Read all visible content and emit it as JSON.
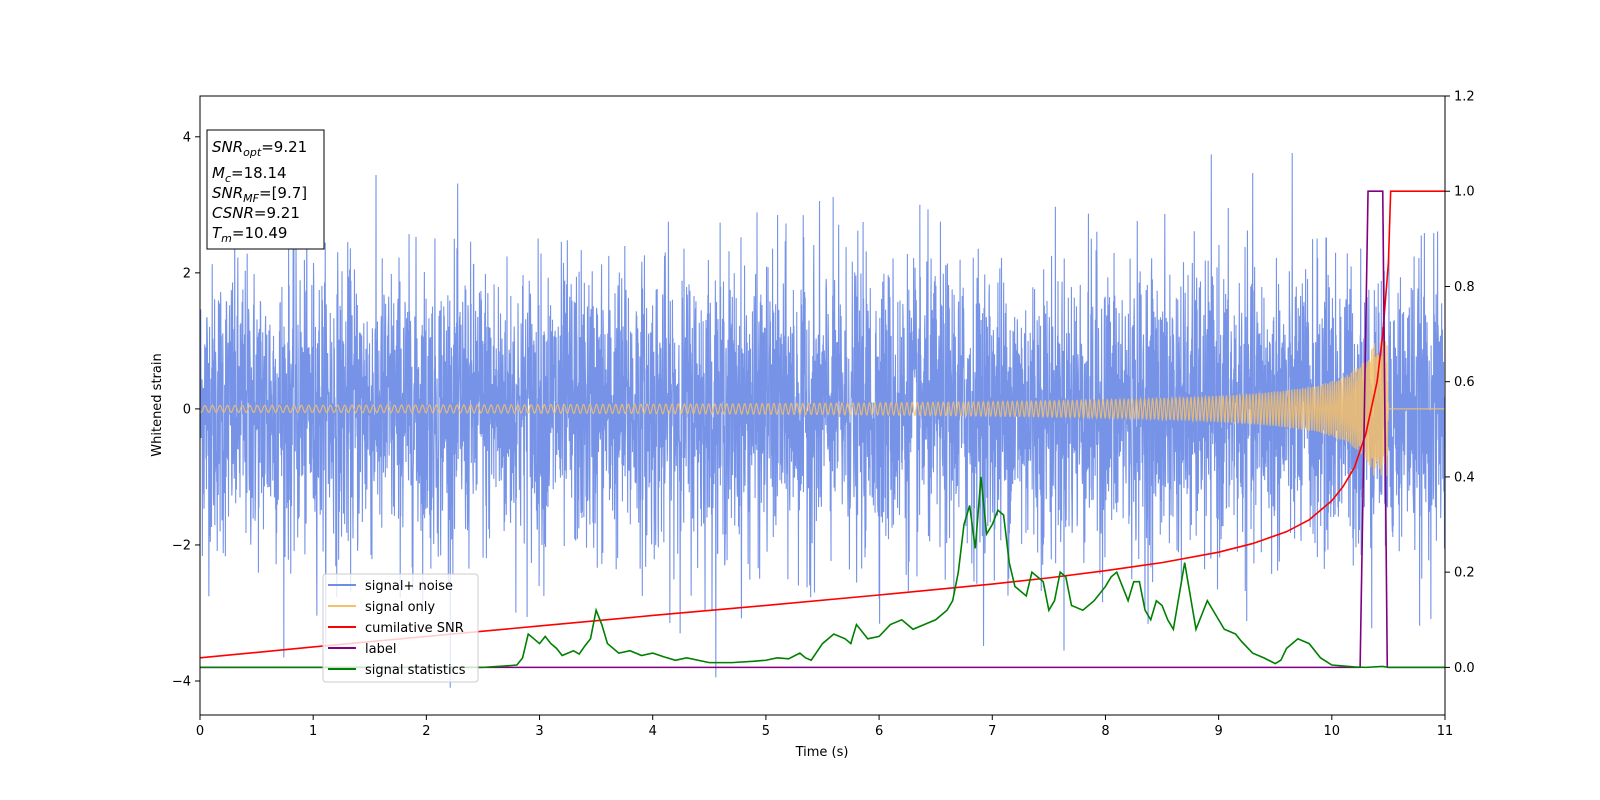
{
  "chart_data": {
    "type": "line",
    "xlabel": "Time (s)",
    "ylabel": "Whitened strain",
    "xlim": [
      0,
      11
    ],
    "ylim": [
      -4.5,
      4.6
    ],
    "y2lim": [
      -0.1,
      1.2
    ],
    "x_ticks": [
      "0",
      "1",
      "2",
      "3",
      "4",
      "5",
      "6",
      "7",
      "8",
      "9",
      "10",
      "11"
    ],
    "y_ticks": [
      "−4",
      "−2",
      "0",
      "2",
      "4"
    ],
    "y2_ticks": [
      "0.0",
      "0.2",
      "0.4",
      "0.6",
      "0.8",
      "1.0",
      "1.2"
    ],
    "grid": false,
    "legend_position": "lower-left",
    "annotation": {
      "snr_opt": {
        "base": "SNR",
        "sub": "opt",
        "value": "=9.21"
      },
      "mc": {
        "base": "M",
        "sub": "c",
        "value": "=18.14"
      },
      "snr_mf": {
        "base": "SNR",
        "sub": "MF",
        "value": "=[9.7]"
      },
      "csnr": {
        "base": "CSNR",
        "sub": "",
        "value": "=9.21"
      },
      "tm": {
        "base": "T",
        "sub": "m",
        "value": "=10.49"
      }
    },
    "series": [
      {
        "name": "signal+ noise",
        "color": "#6f8de6",
        "axis": "left",
        "kind": "noise",
        "std": 1.05,
        "t_range": [
          0,
          11
        ]
      },
      {
        "name": "signal only",
        "color": "#f4c06b",
        "axis": "left",
        "kind": "chirp",
        "t_merge": 10.5,
        "amp_start": 0.05,
        "amp_end": 1.0
      },
      {
        "name": "cumilative SNR",
        "color": "#ff0000",
        "axis": "right",
        "x": [
          0,
          1,
          2,
          3,
          4,
          5,
          6,
          7,
          7.5,
          8,
          8.5,
          9,
          9.3,
          9.6,
          9.8,
          10,
          10.1,
          10.2,
          10.3,
          10.4,
          10.45,
          10.5,
          10.52,
          11
        ],
        "y": [
          0.02,
          0.043,
          0.065,
          0.087,
          0.109,
          0.13,
          0.152,
          0.175,
          0.188,
          0.203,
          0.22,
          0.242,
          0.26,
          0.285,
          0.31,
          0.35,
          0.38,
          0.42,
          0.49,
          0.6,
          0.7,
          0.85,
          1.0,
          1.0
        ]
      },
      {
        "name": "label",
        "color": "#800080",
        "axis": "right",
        "x": [
          0,
          10.25,
          10.32,
          10.45,
          10.49,
          10.51,
          11
        ],
        "y": [
          0,
          0,
          1,
          1,
          0,
          0,
          0
        ]
      },
      {
        "name": "signal statistics",
        "color": "#008000",
        "axis": "right",
        "x": [
          0,
          0.5,
          1,
          1.5,
          2,
          2.3,
          2.5,
          2.7,
          2.8,
          2.85,
          2.9,
          2.95,
          3.0,
          3.05,
          3.1,
          3.15,
          3.2,
          3.25,
          3.3,
          3.35,
          3.4,
          3.45,
          3.5,
          3.55,
          3.6,
          3.7,
          3.8,
          3.9,
          4.0,
          4.1,
          4.2,
          4.3,
          4.5,
          4.7,
          4.9,
          5.0,
          5.1,
          5.2,
          5.3,
          5.35,
          5.4,
          5.5,
          5.6,
          5.7,
          5.75,
          5.8,
          5.9,
          6.0,
          6.1,
          6.2,
          6.3,
          6.4,
          6.5,
          6.6,
          6.65,
          6.7,
          6.75,
          6.8,
          6.85,
          6.9,
          6.95,
          7.0,
          7.05,
          7.1,
          7.15,
          7.2,
          7.3,
          7.35,
          7.4,
          7.45,
          7.5,
          7.55,
          7.6,
          7.65,
          7.7,
          7.8,
          7.9,
          8.0,
          8.05,
          8.1,
          8.2,
          8.25,
          8.3,
          8.35,
          8.4,
          8.45,
          8.5,
          8.55,
          8.6,
          8.65,
          8.7,
          8.75,
          8.8,
          8.85,
          8.9,
          8.95,
          9.0,
          9.05,
          9.1,
          9.15,
          9.2,
          9.3,
          9.4,
          9.5,
          9.55,
          9.6,
          9.65,
          9.7,
          9.8,
          9.9,
          10.0,
          10.2,
          10.3,
          10.45,
          10.5,
          11
        ],
        "y": [
          0.0,
          0.0,
          0.0,
          0.0,
          0.0,
          0.0,
          0.0,
          0.003,
          0.005,
          0.02,
          0.07,
          0.06,
          0.05,
          0.065,
          0.05,
          0.04,
          0.025,
          0.03,
          0.035,
          0.028,
          0.045,
          0.06,
          0.12,
          0.09,
          0.05,
          0.03,
          0.035,
          0.025,
          0.03,
          0.022,
          0.015,
          0.02,
          0.01,
          0.01,
          0.013,
          0.015,
          0.02,
          0.018,
          0.03,
          0.02,
          0.015,
          0.05,
          0.07,
          0.06,
          0.05,
          0.09,
          0.06,
          0.065,
          0.09,
          0.1,
          0.08,
          0.09,
          0.1,
          0.12,
          0.14,
          0.2,
          0.3,
          0.34,
          0.25,
          0.4,
          0.28,
          0.3,
          0.33,
          0.32,
          0.22,
          0.17,
          0.15,
          0.2,
          0.19,
          0.18,
          0.12,
          0.14,
          0.2,
          0.19,
          0.13,
          0.12,
          0.14,
          0.17,
          0.19,
          0.2,
          0.14,
          0.18,
          0.18,
          0.12,
          0.1,
          0.14,
          0.13,
          0.1,
          0.08,
          0.15,
          0.22,
          0.15,
          0.08,
          0.11,
          0.14,
          0.12,
          0.1,
          0.08,
          0.075,
          0.07,
          0.055,
          0.03,
          0.02,
          0.008,
          0.015,
          0.04,
          0.05,
          0.06,
          0.05,
          0.02,
          0.005,
          0.001,
          0.0,
          0.002,
          0.0,
          0.0
        ]
      }
    ]
  }
}
